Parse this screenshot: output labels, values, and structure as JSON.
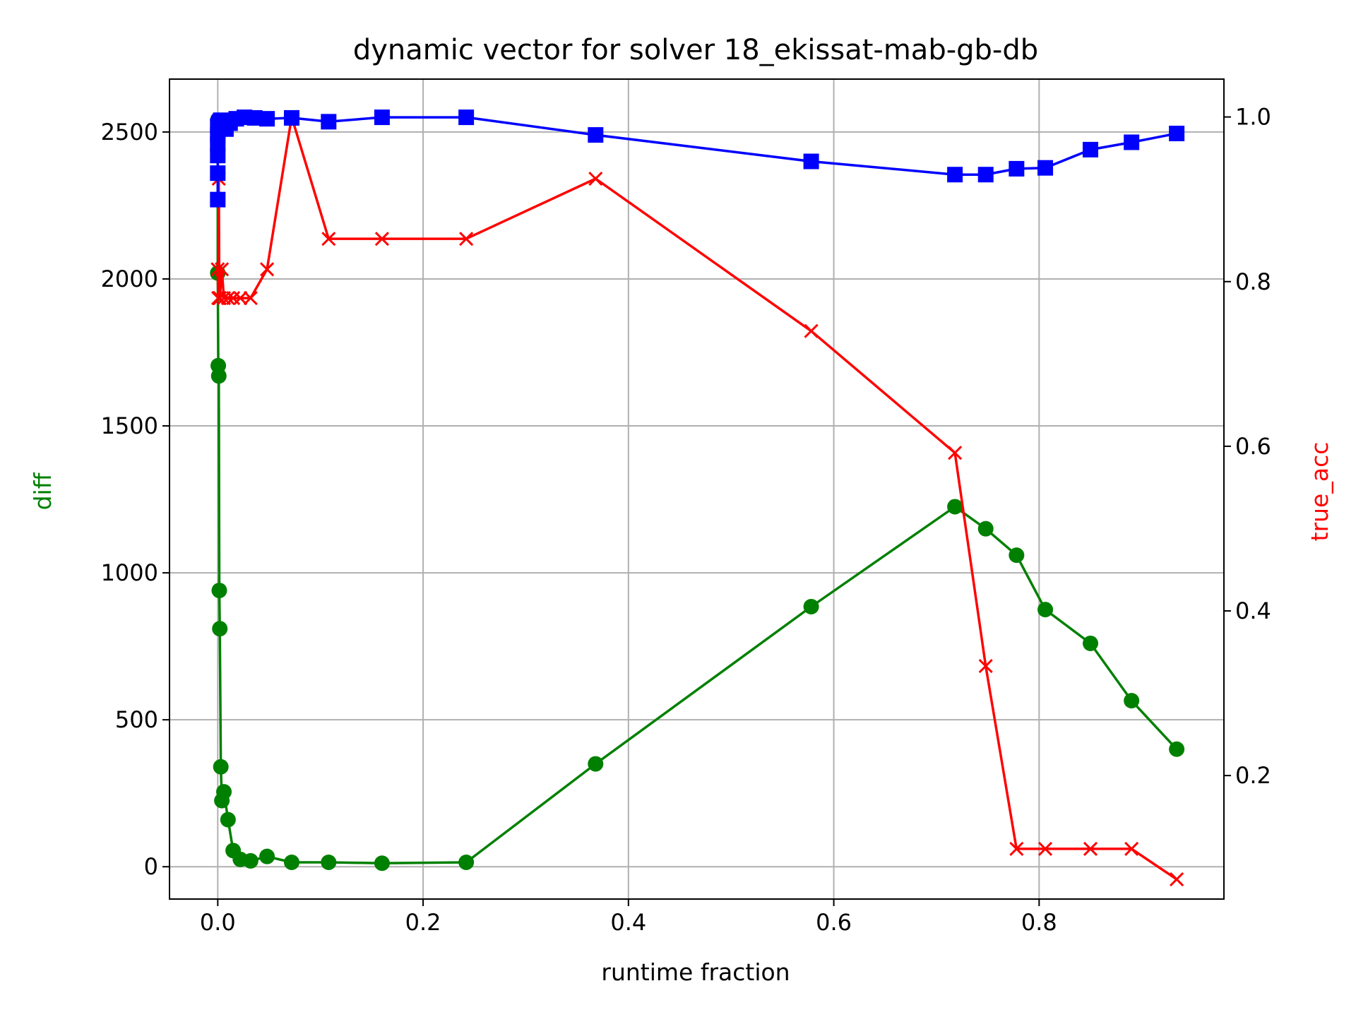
{
  "chart_data": {
    "type": "line",
    "title": "dynamic vector for solver 18_ekissat-mab-gb-db",
    "xlabel": "runtime fraction",
    "ylabel_left": "diff",
    "ylabel_right": "true_acc",
    "grid": true,
    "xlim": [
      -0.047,
      0.98
    ],
    "ylim_left": [
      -110,
      2680
    ],
    "ylim_right": [
      0.05,
      1.046
    ],
    "x_ticks": [
      0.0,
      0.2,
      0.4,
      0.6,
      0.8
    ],
    "x_tick_labels": [
      "0.0",
      "0.2",
      "0.4",
      "0.6",
      "0.8"
    ],
    "y_left_ticks": [
      0,
      500,
      1000,
      1500,
      2000,
      2500
    ],
    "y_left_tick_labels": [
      "0",
      "500",
      "1000",
      "1500",
      "2000",
      "2500"
    ],
    "y_right_ticks": [
      0.2,
      0.4,
      0.6,
      0.8,
      1.0
    ],
    "y_right_tick_labels": [
      "0.2",
      "0.4",
      "0.6",
      "0.8",
      "1.0"
    ],
    "colors": {
      "diff": "#008000",
      "true_acc": "#ff0000",
      "blue_series": "#0000ff",
      "ylabel_left": "#008000",
      "ylabel_right": "#ff0000"
    },
    "series": [
      {
        "axis": "left",
        "color": "#008000",
        "marker": "circle",
        "x": [
          0.0,
          0.0,
          0.0005,
          0.001,
          0.0015,
          0.002,
          0.003,
          0.004,
          0.006,
          0.01,
          0.015,
          0.022,
          0.032,
          0.048,
          0.072,
          0.108,
          0.16,
          0.242,
          0.368,
          0.578,
          0.718,
          0.748,
          0.778,
          0.806,
          0.85,
          0.89,
          0.934
        ],
        "y": [
          2540,
          2020,
          1705,
          1670,
          940,
          810,
          340,
          225,
          255,
          160,
          55,
          25,
          20,
          35,
          15,
          15,
          12,
          15,
          350,
          885,
          1225,
          1150,
          1060,
          875,
          760,
          565,
          400
        ]
      },
      {
        "axis": "right",
        "color": "#ff0000",
        "marker": "x",
        "x": [
          0.0,
          0.0005,
          0.001,
          0.0015,
          0.002,
          0.004,
          0.006,
          0.01,
          0.015,
          0.022,
          0.032,
          0.048,
          0.072,
          0.108,
          0.16,
          0.242,
          0.368,
          0.578,
          0.718,
          0.748,
          0.778,
          0.806,
          0.85,
          0.89,
          0.934
        ],
        "y": [
          0.815,
          0.78,
          0.925,
          0.78,
          0.78,
          0.815,
          0.78,
          0.78,
          0.78,
          0.78,
          0.78,
          0.815,
          1.0,
          0.852,
          0.852,
          0.852,
          0.925,
          0.74,
          0.592,
          0.333,
          0.111,
          0.111,
          0.111,
          0.111,
          0.074
        ]
      },
      {
        "axis": "left",
        "color": "#0000ff",
        "marker": "square",
        "x": [
          0.0,
          0.0,
          0.0,
          0.0,
          0.0,
          0.0,
          0.001,
          0.002,
          0.003,
          0.005,
          0.008,
          0.012,
          0.018,
          0.026,
          0.036,
          0.048,
          0.072,
          0.108,
          0.16,
          0.242,
          0.368,
          0.578,
          0.718,
          0.748,
          0.778,
          0.806,
          0.85,
          0.89,
          0.934
        ],
        "y": [
          2270,
          2360,
          2420,
          2460,
          2490,
          2520,
          2530,
          2535,
          2540,
          2525,
          2510,
          2530,
          2545,
          2550,
          2548,
          2545,
          2548,
          2535,
          2550,
          2550,
          2490,
          2400,
          2355,
          2355,
          2375,
          2378,
          2440,
          2465,
          2495
        ]
      }
    ]
  }
}
